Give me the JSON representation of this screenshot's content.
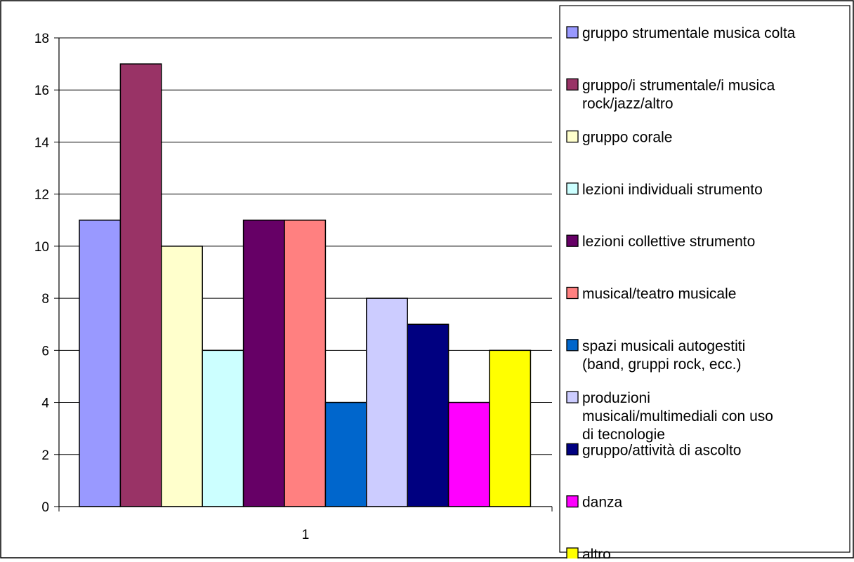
{
  "chart_data": {
    "type": "bar",
    "title": "",
    "xlabel": "",
    "ylabel": "",
    "categories": [
      "1"
    ],
    "ylim": [
      0,
      18
    ],
    "yticks": [
      0,
      2,
      4,
      6,
      8,
      10,
      12,
      14,
      16,
      18
    ],
    "grid": true,
    "legend_position": "right",
    "series": [
      {
        "name": "gruppo strumentale musica colta",
        "values": [
          11
        ],
        "color": "#9999FF"
      },
      {
        "name": "gruppo/i strumentale/i musica rock/jazz/altro",
        "values": [
          17
        ],
        "color": "#993366"
      },
      {
        "name": "gruppo corale",
        "values": [
          10
        ],
        "color": "#FFFFCC"
      },
      {
        "name": "lezioni individuali strumento",
        "values": [
          6
        ],
        "color": "#CCFFFF"
      },
      {
        "name": "lezioni collettive strumento",
        "values": [
          11
        ],
        "color": "#660066"
      },
      {
        "name": "musical/teatro musicale",
        "values": [
          11
        ],
        "color": "#FF8080"
      },
      {
        "name": "spazi musicali autogestiti (band, gruppi rock, ecc.)",
        "values": [
          4
        ],
        "color": "#0066CC"
      },
      {
        "name": "produzioni musicali/multimediali con uso di tecnologie",
        "values": [
          8
        ],
        "color": "#CCCCFF"
      },
      {
        "name": "gruppo/attività di ascolto",
        "values": [
          7
        ],
        "color": "#000080"
      },
      {
        "name": "danza",
        "values": [
          4
        ],
        "color": "#FF00FF"
      },
      {
        "name": "altro",
        "values": [
          6
        ],
        "color": "#FFFF00"
      }
    ]
  }
}
